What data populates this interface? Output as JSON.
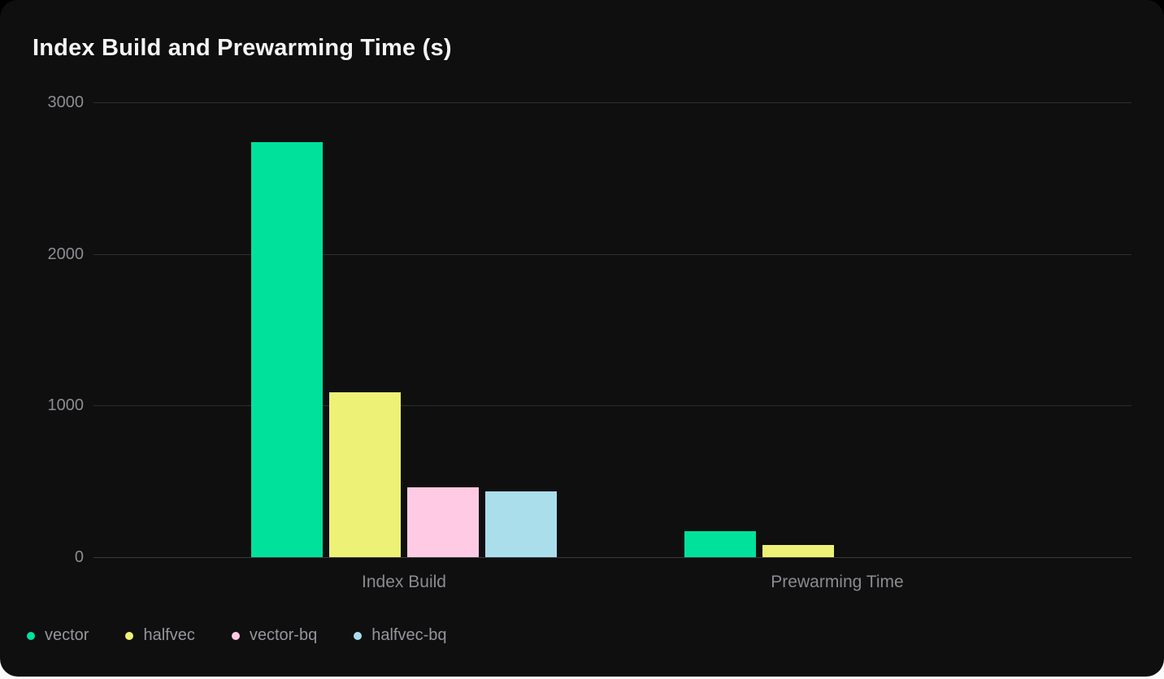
{
  "card": {
    "title": "Index Build and Prewarming Time (s)"
  },
  "chart_data": {
    "type": "bar",
    "title": "Index Build and Prewarming Time (s)",
    "categories": [
      "Index Build",
      "Prewarming Time"
    ],
    "series": [
      {
        "name": "vector",
        "color": "#00e19c",
        "values": [
          2740,
          170
        ]
      },
      {
        "name": "halfvec",
        "color": "#edf175",
        "values": [
          1090,
          80
        ]
      },
      {
        "name": "vector-bq",
        "color": "#ffcae3",
        "values": [
          460,
          0
        ]
      },
      {
        "name": "halfvec-bq",
        "color": "#aadeeb",
        "values": [
          435,
          0
        ]
      }
    ],
    "xlabel": "",
    "ylabel": "",
    "ylim": [
      0,
      3000
    ],
    "yticks": [
      0,
      1000,
      2000,
      3000
    ],
    "grid": true,
    "legend_position": "bottom"
  },
  "theme": {
    "page_background": "#000000",
    "card_background": "#0f0f10",
    "gridline_color": "#2d2d2f",
    "baseline_color": "#3a3a3c",
    "title_color": "#f4f4f4",
    "tick_label_color": "#8c8d91",
    "category_label_color": "#8a8b90",
    "legend_text_color": "#95969b",
    "bottom_strip_color": "#fbfbfb"
  }
}
